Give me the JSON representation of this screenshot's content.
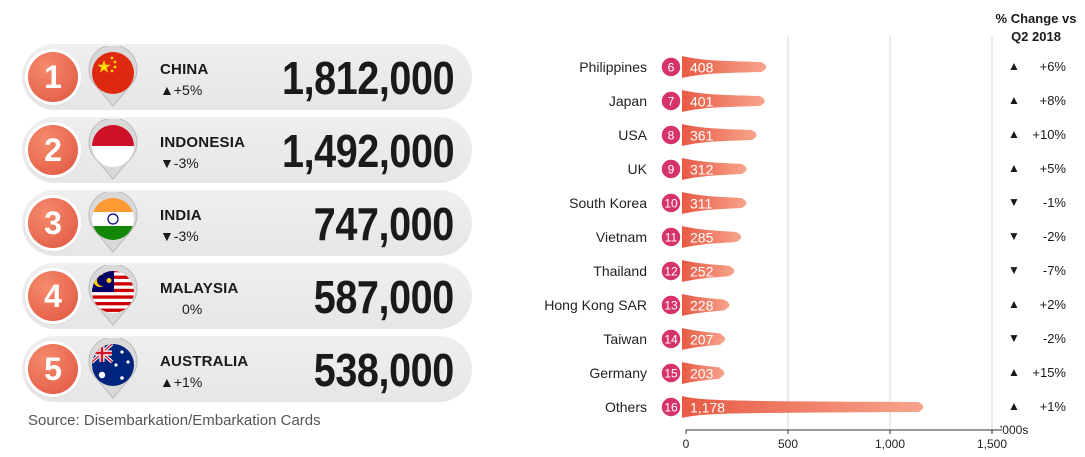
{
  "top5": [
    {
      "rank": "1",
      "country": "CHINA",
      "change": "▲+5%",
      "value": "1,812,000",
      "flag": "china-flag"
    },
    {
      "rank": "2",
      "country": "INDONESIA",
      "change": "▼-3%",
      "value": "1,492,000",
      "flag": "indonesia-flag"
    },
    {
      "rank": "3",
      "country": "INDIA",
      "change": "▼-3%",
      "value": "747,000",
      "flag": "india-flag"
    },
    {
      "rank": "4",
      "country": "MALAYSIA",
      "change": "0%",
      "value": "587,000",
      "flag": "malaysia-flag"
    },
    {
      "rank": "5",
      "country": "AUSTRALIA",
      "change": "▲+1%",
      "value": "538,000",
      "flag": "australia-flag"
    }
  ],
  "source": "Source: Disembarkation/Embarkation Cards",
  "change_header": {
    "line1": "% Change vs",
    "line2": "Q2 2018"
  },
  "colors": {
    "accent": "#e85a44",
    "badge": "#d6336c",
    "bar_light": "#f7a48c"
  },
  "chart_data": {
    "type": "bar",
    "orientation": "horizontal",
    "categories": [
      "Philippines",
      "Japan",
      "USA",
      "UK",
      "South Korea",
      "Vietnam",
      "Thailand",
      "Hong Kong SAR",
      "Taiwan",
      "Germany",
      "Others"
    ],
    "ranks": [
      "6",
      "7",
      "8",
      "9",
      "10",
      "11",
      "12",
      "13",
      "14",
      "15",
      "16"
    ],
    "values": [
      408,
      401,
      361,
      312,
      311,
      285,
      252,
      228,
      207,
      203,
      1178
    ],
    "value_labels": [
      "408",
      "401",
      "361",
      "312",
      "311",
      "285",
      "252",
      "228",
      "207",
      "203",
      "1,178"
    ],
    "changes": [
      "+6%",
      "+8%",
      "+10%",
      "+5%",
      "-1%",
      "-2%",
      "-7%",
      "+2%",
      "-2%",
      "+15%",
      "+1%"
    ],
    "change_direction": [
      "up",
      "up",
      "up",
      "up",
      "down",
      "down",
      "down",
      "up",
      "down",
      "up",
      "up"
    ],
    "xlim": [
      0,
      1500
    ],
    "xticks": [
      "0",
      "500",
      "1,000",
      "1,500"
    ],
    "xtick_values": [
      0,
      500,
      1000,
      1500
    ],
    "xunit": "'000s",
    "grid": true
  }
}
